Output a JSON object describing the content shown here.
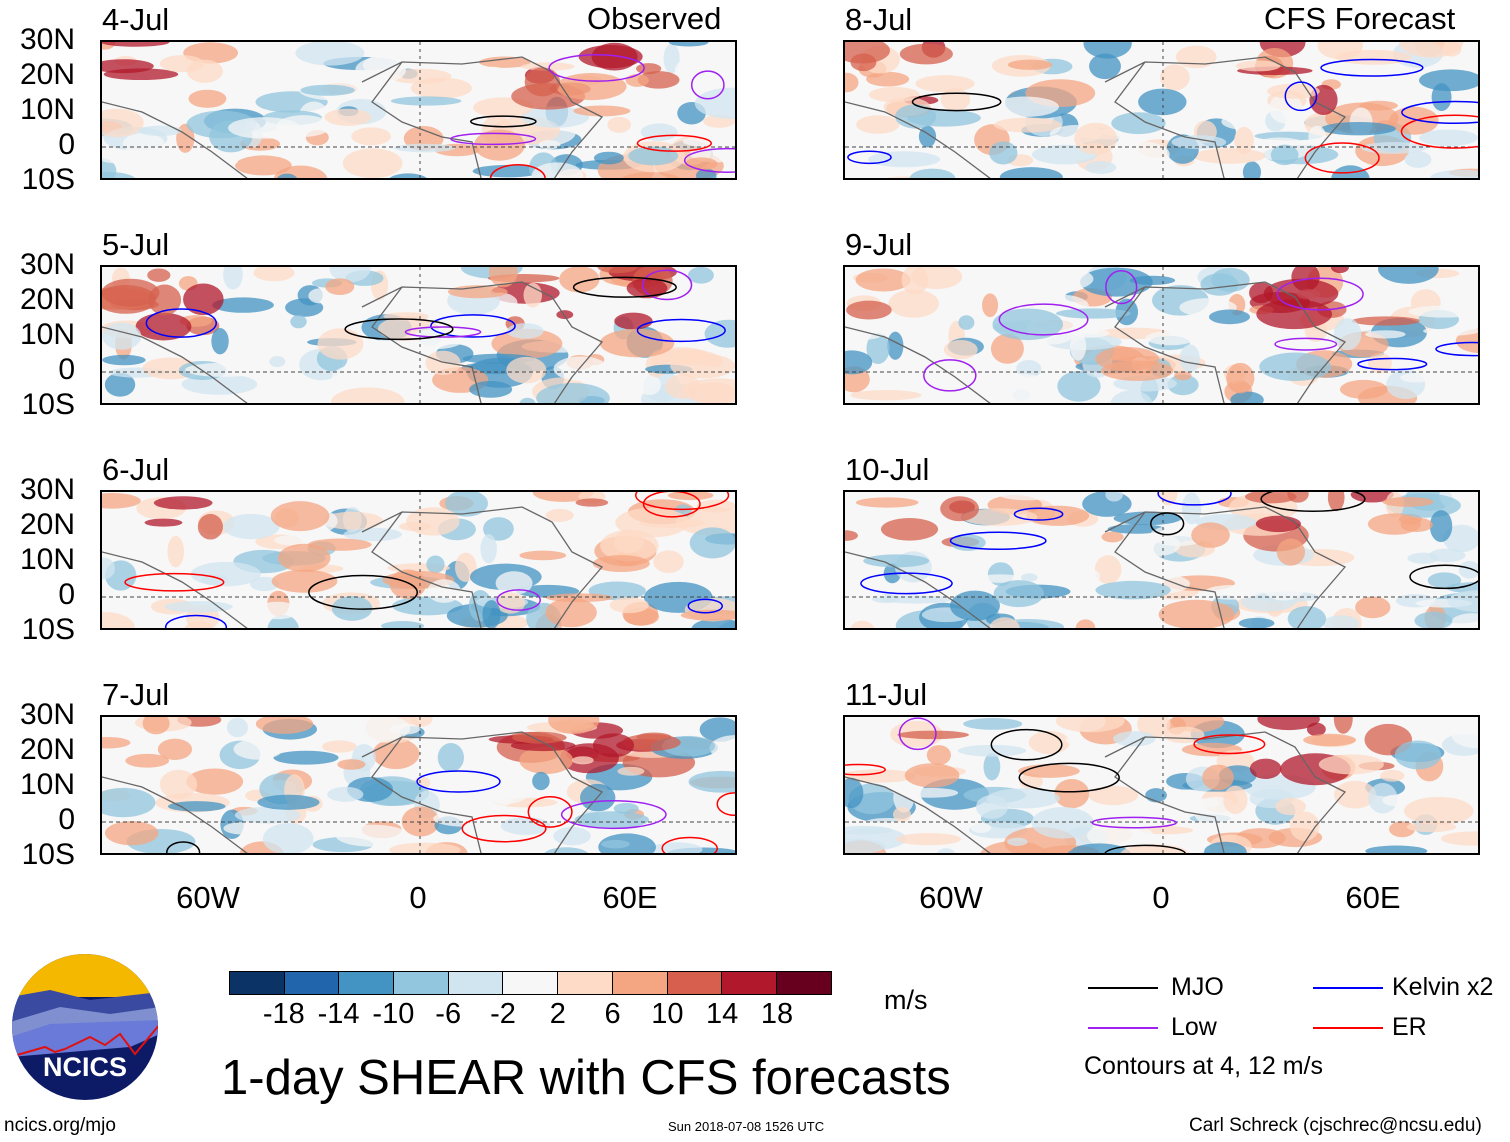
{
  "panel_titles": {
    "left": "Observed",
    "right": "CFS Forecast"
  },
  "panels": [
    {
      "date": "4-Jul",
      "column": "observed"
    },
    {
      "date": "5-Jul",
      "column": "observed"
    },
    {
      "date": "6-Jul",
      "column": "observed"
    },
    {
      "date": "7-Jul",
      "column": "observed"
    },
    {
      "date": "8-Jul",
      "column": "forecast"
    },
    {
      "date": "9-Jul",
      "column": "forecast"
    },
    {
      "date": "10-Jul",
      "column": "forecast"
    },
    {
      "date": "11-Jul",
      "column": "forecast"
    }
  ],
  "lat_labels": [
    "30N",
    "20N",
    "10N",
    "0",
    "10S"
  ],
  "lon_labels": [
    "60W",
    "0",
    "60E"
  ],
  "colorbar": {
    "colors": [
      "#0b3366",
      "#2166ac",
      "#4393c3",
      "#92c5de",
      "#d1e5f0",
      "#f7f7f7",
      "#fddbc7",
      "#f4a582",
      "#d6604d",
      "#b2182b",
      "#67001f"
    ],
    "ticks": [
      "-18",
      "-14",
      "-10",
      "-6",
      "-2",
      "2",
      "6",
      "10",
      "14",
      "18"
    ],
    "units": "m/s"
  },
  "legend": {
    "items": [
      {
        "label": "MJO",
        "color": "#000000"
      },
      {
        "label": "Kelvin x2",
        "color": "#0000ff"
      },
      {
        "label": "Low",
        "color": "#a020f0"
      },
      {
        "label": "ER",
        "color": "#ff0000"
      }
    ],
    "note": "Contours at 4, 12 m/s"
  },
  "title": "1-day SHEAR with CFS forecasts",
  "logo_text": "NCICS",
  "footer": {
    "url": "ncics.org/mjo",
    "timestamp": "Sun 2018-07-08 1526 UTC",
    "credit": "Carl Schreck (cjschrec@ncsu.edu)"
  }
}
